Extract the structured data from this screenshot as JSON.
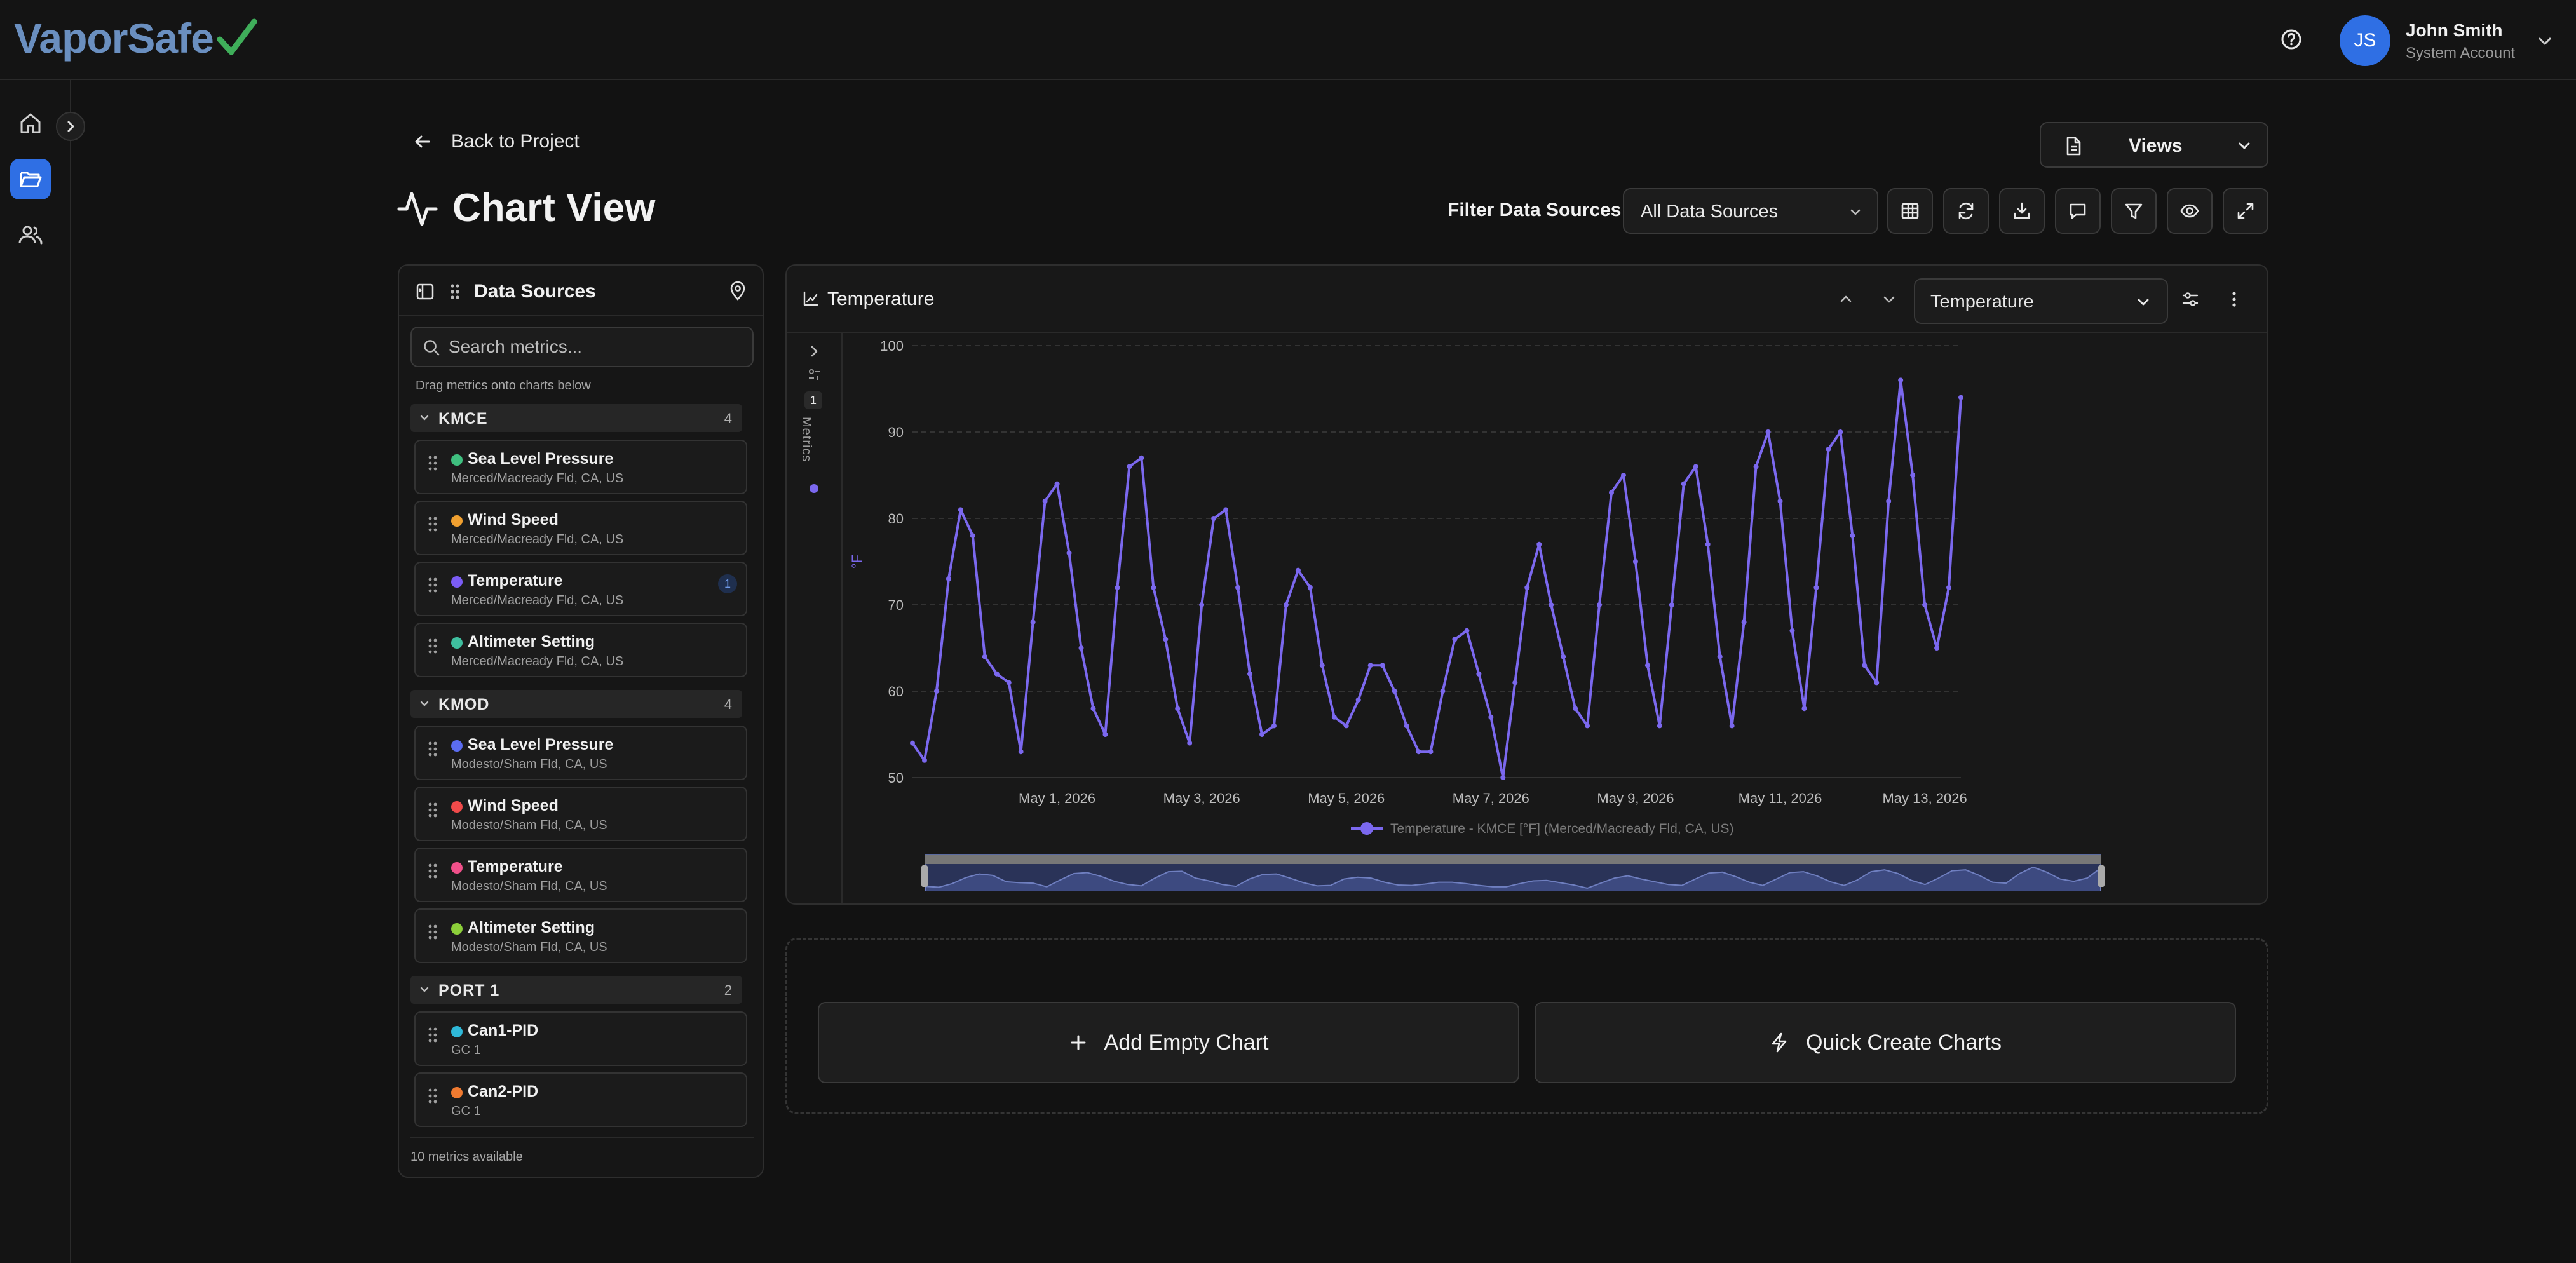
{
  "brand": {
    "logo_text": "VaporSafe",
    "accent": "#2f6fe4",
    "check_color": "#3fae5a"
  },
  "user": {
    "initials": "JS",
    "name": "John Smith",
    "role": "System Account"
  },
  "nav": {
    "back_label": "Back to Project",
    "page_title": "Chart View",
    "views_label": "Views"
  },
  "filter": {
    "label": "Filter Data Sources:",
    "value": "All Data Sources"
  },
  "toolbar_icons": [
    "table-icon",
    "refresh-icon",
    "download-icon",
    "comment-icon",
    "filter-icon",
    "eye-icon",
    "expand-icon"
  ],
  "data_sources": {
    "title": "Data Sources",
    "search_placeholder": "Search metrics...",
    "hint": "Drag metrics onto charts below",
    "footer": "10 metrics available",
    "groups": [
      {
        "name": "KMCE",
        "count": "4",
        "items": [
          {
            "name": "Sea Level Pressure",
            "location": "Merced/Macready Fld, CA, US",
            "color": "#3fbf7f"
          },
          {
            "name": "Wind Speed",
            "location": "Merced/Macready Fld, CA, US",
            "color": "#f0a030"
          },
          {
            "name": "Temperature",
            "location": "Merced/Macready Fld, CA, US",
            "color": "#7b5cf5",
            "badge": "1"
          },
          {
            "name": "Altimeter Setting",
            "location": "Merced/Macready Fld, CA, US",
            "color": "#3fbf9f"
          }
        ]
      },
      {
        "name": "KMOD",
        "count": "4",
        "items": [
          {
            "name": "Sea Level Pressure",
            "location": "Modesto/Sham Fld, CA, US",
            "color": "#5b6cf0"
          },
          {
            "name": "Wind Speed",
            "location": "Modesto/Sham Fld, CA, US",
            "color": "#f04a4a"
          },
          {
            "name": "Temperature",
            "location": "Modesto/Sham Fld, CA, US",
            "color": "#f0508a"
          },
          {
            "name": "Altimeter Setting",
            "location": "Modesto/Sham Fld, CA, US",
            "color": "#8ccf3a"
          }
        ]
      },
      {
        "name": "PORT 1",
        "count": "2",
        "items": [
          {
            "name": "Can1-PID",
            "location": "GC 1",
            "color": "#2fb8d8"
          },
          {
            "name": "Can2-PID",
            "location": "GC 1",
            "color": "#f07a30"
          }
        ]
      }
    ]
  },
  "chart": {
    "title": "Temperature",
    "selected_metric": "Temperature",
    "metrics_strip_label": "Metrics",
    "metrics_count": "1",
    "legend": "Temperature - KMCE [°F] (Merced/Macready Fld, CA, US)",
    "ylabel": "°F",
    "line_color": "#7b68ee"
  },
  "chart_data": {
    "type": "line",
    "xlabel": "",
    "ylabel": "°F",
    "ylim": [
      50,
      100
    ],
    "yticks": [
      50,
      60,
      70,
      80,
      90,
      100
    ],
    "x_range": [
      "Apr 29, 2026",
      "May 13, 2026"
    ],
    "xticks": [
      "May 1, 2026",
      "May 3, 2026",
      "May 5, 2026",
      "May 7, 2026",
      "May 9, 2026",
      "May 11, 2026",
      "May 13, 2026"
    ],
    "grid": true,
    "legend_position": "bottom",
    "series": [
      {
        "name": "Temperature - KMCE [°F] (Merced/Macready Fld, CA, US)",
        "color": "#7b68ee",
        "x": [
          "Apr 29, 2026 00:00",
          "Apr 29, 2026 04:00",
          "Apr 29, 2026 08:00",
          "Apr 29, 2026 12:00",
          "Apr 29, 2026 16:00",
          "Apr 29, 2026 20:00",
          "Apr 30, 2026 00:00",
          "Apr 30, 2026 04:00",
          "Apr 30, 2026 08:00",
          "Apr 30, 2026 12:00",
          "Apr 30, 2026 16:00",
          "Apr 30, 2026 20:00",
          "May 1, 2026 00:00",
          "May 1, 2026 04:00",
          "May 1, 2026 08:00",
          "May 1, 2026 12:00",
          "May 1, 2026 16:00",
          "May 1, 2026 20:00",
          "May 2, 2026 00:00",
          "May 2, 2026 04:00",
          "May 2, 2026 08:00",
          "May 2, 2026 12:00",
          "May 2, 2026 16:00",
          "May 2, 2026 20:00",
          "May 3, 2026 00:00",
          "May 3, 2026 04:00",
          "May 3, 2026 08:00",
          "May 3, 2026 12:00",
          "May 3, 2026 16:00",
          "May 3, 2026 20:00",
          "May 4, 2026 00:00",
          "May 4, 2026 04:00",
          "May 4, 2026 08:00",
          "May 4, 2026 12:00",
          "May 4, 2026 16:00",
          "May 4, 2026 20:00",
          "May 5, 2026 00:00",
          "May 5, 2026 04:00",
          "May 5, 2026 08:00",
          "May 5, 2026 12:00",
          "May 5, 2026 16:00",
          "May 5, 2026 20:00",
          "May 6, 2026 00:00",
          "May 6, 2026 04:00",
          "May 6, 2026 08:00",
          "May 6, 2026 12:00",
          "May 6, 2026 16:00",
          "May 6, 2026 20:00",
          "May 7, 2026 00:00",
          "May 7, 2026 04:00",
          "May 7, 2026 08:00",
          "May 7, 2026 12:00",
          "May 7, 2026 16:00",
          "May 7, 2026 20:00",
          "May 8, 2026 00:00",
          "May 8, 2026 04:00",
          "May 8, 2026 08:00",
          "May 8, 2026 12:00",
          "May 8, 2026 16:00",
          "May 8, 2026 20:00",
          "May 9, 2026 00:00",
          "May 9, 2026 04:00",
          "May 9, 2026 08:00",
          "May 9, 2026 12:00",
          "May 9, 2026 16:00",
          "May 9, 2026 20:00",
          "May 10, 2026 00:00",
          "May 10, 2026 04:00",
          "May 10, 2026 08:00",
          "May 10, 2026 12:00",
          "May 10, 2026 16:00",
          "May 10, 2026 20:00",
          "May 11, 2026 00:00",
          "May 11, 2026 04:00",
          "May 11, 2026 08:00",
          "May 11, 2026 12:00",
          "May 11, 2026 16:00",
          "May 11, 2026 20:00",
          "May 12, 2026 00:00",
          "May 12, 2026 04:00",
          "May 12, 2026 08:00",
          "May 12, 2026 12:00",
          "May 12, 2026 16:00",
          "May 12, 2026 20:00",
          "May 13, 2026 00:00",
          "May 13, 2026 04:00",
          "May 13, 2026 08:00",
          "May 13, 2026 12:00"
        ],
        "y": [
          54,
          52,
          60,
          73,
          81,
          78,
          64,
          62,
          61,
          53,
          68,
          82,
          84,
          76,
          65,
          58,
          55,
          72,
          86,
          87,
          72,
          66,
          58,
          54,
          70,
          80,
          81,
          72,
          62,
          55,
          56,
          70,
          74,
          72,
          63,
          57,
          56,
          59,
          63,
          63,
          60,
          56,
          53,
          53,
          60,
          66,
          67,
          62,
          57,
          50,
          61,
          72,
          77,
          70,
          64,
          58,
          56,
          70,
          83,
          85,
          75,
          63,
          56,
          70,
          84,
          86,
          77,
          64,
          56,
          68,
          86,
          90,
          82,
          67,
          58,
          72,
          88,
          90,
          78,
          63,
          61,
          82,
          96,
          85,
          70,
          65,
          72,
          94
        ]
      }
    ]
  }
}
